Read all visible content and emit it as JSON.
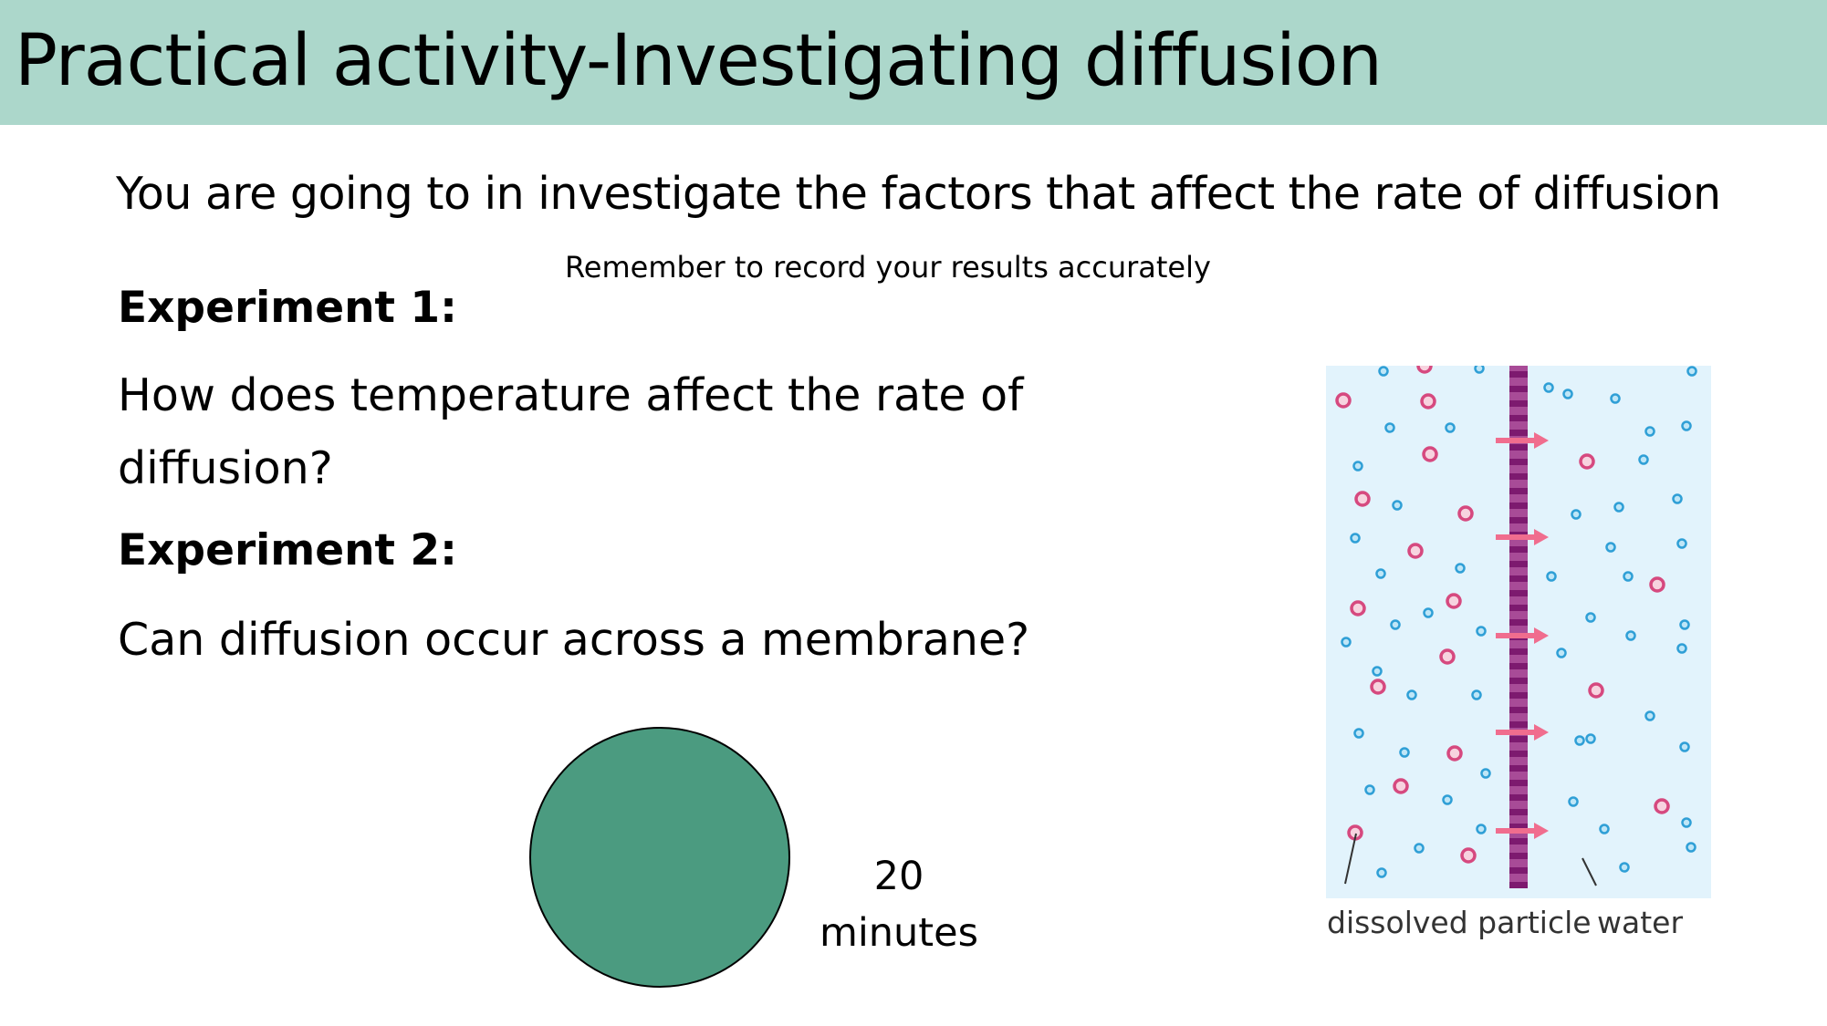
{
  "slide": {
    "title": "Practical activity-Investigating diffusion",
    "intro": "You are going to in investigate the factors that affect the rate of diffusion",
    "reminder": "Remember to record your results accurately",
    "experiment1": {
      "heading": "Experiment 1:",
      "question": "How does temperature affect the rate of diffusion?"
    },
    "experiment2": {
      "heading": "Experiment 2:",
      "question": "Can diffusion occur across a membrane?"
    },
    "timer": {
      "value": "20",
      "unit": "minutes"
    }
  },
  "diagram": {
    "label_dissolved": "dissolved particle",
    "label_water": "water",
    "colors": {
      "background": "#e2f3fc",
      "membrane": "#a84b97",
      "membrane_dash": "#7d1a6f",
      "particle": "#d6497f",
      "particle_fill": "#f7d3df",
      "water": "#2f9fd6",
      "arrow": "#f06d8e"
    }
  },
  "colors": {
    "title_bar": "#acd7cb",
    "timer_circle": "#4b9b80"
  }
}
